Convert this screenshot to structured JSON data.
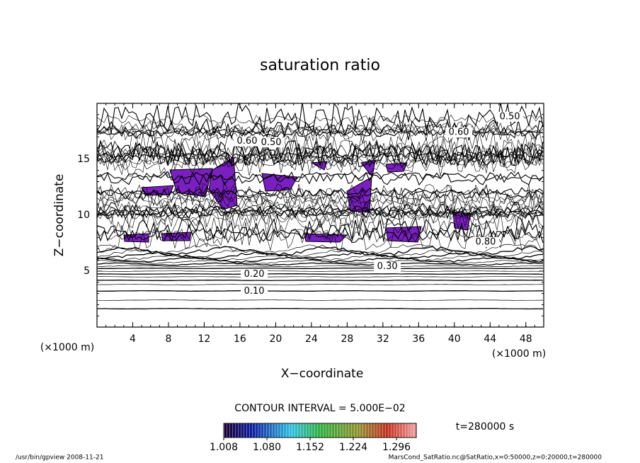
{
  "chart_data": {
    "type": "contour",
    "title": "saturation ratio",
    "xlabel": "X−coordinate",
    "ylabel": "Z−coordinate",
    "x_unit": "(×1000 m)",
    "y_unit": "(×1000 m)",
    "xlim": [
      0,
      50
    ],
    "ylim": [
      0,
      20
    ],
    "xticks": [
      4,
      8,
      12,
      16,
      20,
      24,
      28,
      32,
      36,
      40,
      44,
      48
    ],
    "yticks": [
      5,
      10,
      15
    ],
    "contour_labels": [
      {
        "value": 0.1,
        "label": "0.10"
      },
      {
        "value": 0.2,
        "label": "0.20"
      },
      {
        "value": 0.3,
        "label": "0.30"
      },
      {
        "value": 0.5,
        "label": "0.50"
      },
      {
        "value": 0.6,
        "label": "0.60"
      },
      {
        "value": 0.6,
        "label": "0.60"
      },
      {
        "value": 0.5,
        "label": "0.50"
      },
      {
        "value": 0.8,
        "label": "0.80"
      }
    ],
    "contour_interval": "CONTOUR INTERVAL = 5.000E−02",
    "colorbar_lim": [
      1.008,
      1.329
    ],
    "colorbar_ticks": [
      {
        "value": 1.008,
        "label": "1.008"
      },
      {
        "value": 1.08,
        "label": "1.080"
      },
      {
        "value": 1.152,
        "label": "1.152"
      },
      {
        "value": 1.224,
        "label": "1.224"
      },
      {
        "value": 1.296,
        "label": "1.296"
      }
    ],
    "time": "t=280000 s",
    "footer_left": "/usr/bin/gpview   2008-11-21",
    "footer_right": "MarsCond_SatRatio.nc@SatRatio,x=0:50000,z=0:20000,t=280000"
  }
}
